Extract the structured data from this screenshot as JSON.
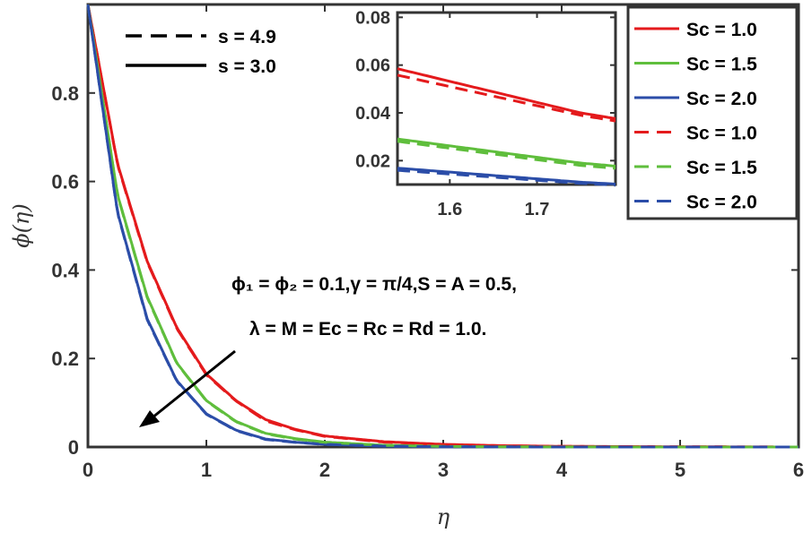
{
  "chart_data": {
    "type": "line",
    "title": "",
    "xlabel": "η",
    "ylabel": "ϕ(η)",
    "xlim": [
      0,
      6
    ],
    "ylim": [
      0,
      1.0
    ],
    "xticks": [
      "0",
      "1",
      "2",
      "3",
      "4",
      "5",
      "6"
    ],
    "yticks": [
      "0",
      "0.2",
      "0.4",
      "0.6",
      "0.8"
    ],
    "x": [
      0,
      0.25,
      0.5,
      0.75,
      1.0,
      1.25,
      1.5,
      1.75,
      2.0,
      2.5,
      3.0,
      3.5,
      4.0,
      5.0,
      6.0
    ],
    "series": [
      {
        "name": "Sc = 1.0",
        "s": "s = 3.0",
        "dash": "solid",
        "color": "#e41a1c",
        "values": [
          1.0,
          0.64,
          0.42,
          0.27,
          0.165,
          0.105,
          0.062,
          0.04,
          0.025,
          0.012,
          0.006,
          0.003,
          0.0015,
          0.0005,
          0.0
        ]
      },
      {
        "name": "Sc = 1.5",
        "s": "s = 3.0",
        "dash": "solid",
        "color": "#5fbe3c",
        "values": [
          1.0,
          0.57,
          0.34,
          0.19,
          0.105,
          0.058,
          0.031,
          0.019,
          0.011,
          0.004,
          0.0015,
          0.0005,
          0.0002,
          0.0,
          0.0
        ]
      },
      {
        "name": "Sc = 2.0",
        "s": "s = 3.0",
        "dash": "solid",
        "color": "#2b4da8",
        "values": [
          1.0,
          0.53,
          0.29,
          0.15,
          0.075,
          0.038,
          0.018,
          0.011,
          0.006,
          0.002,
          0.0005,
          0.0002,
          0.0,
          0.0,
          0.0
        ]
      },
      {
        "name": "Sc = 1.0",
        "s": "s = 4.9",
        "dash": "dashed",
        "color": "#e41a1c",
        "values": [
          1.0,
          0.638,
          0.418,
          0.268,
          0.163,
          0.104,
          0.059,
          0.039,
          0.024,
          0.011,
          0.0055,
          0.0028,
          0.0014,
          0.0005,
          0.0
        ]
      },
      {
        "name": "Sc = 1.5",
        "s": "s = 4.9",
        "dash": "dashed",
        "color": "#5fbe3c",
        "values": [
          1.0,
          0.568,
          0.338,
          0.189,
          0.104,
          0.057,
          0.03,
          0.018,
          0.0105,
          0.0038,
          0.0014,
          0.0005,
          0.0002,
          0.0,
          0.0
        ]
      },
      {
        "name": "Sc = 2.0",
        "s": "s = 4.9",
        "dash": "dashed",
        "color": "#2b4da8",
        "values": [
          1.0,
          0.528,
          0.288,
          0.149,
          0.074,
          0.037,
          0.017,
          0.0105,
          0.0058,
          0.0018,
          0.0005,
          0.0002,
          0.0,
          0.0,
          0.0
        ]
      }
    ],
    "inset": {
      "xlim": [
        1.54,
        1.79
      ],
      "ylim": [
        0.01,
        0.082
      ],
      "xticks": [
        "1.6",
        "1.7"
      ],
      "yticks": [
        "0.02",
        "0.04",
        "0.06",
        "0.08"
      ]
    },
    "line_legend": {
      "dashed": "s = 4.9",
      "solid": "s = 3.0"
    },
    "series_legend": [
      "Sc = 1.0",
      "Sc = 1.5",
      "Sc = 2.0",
      "Sc = 1.0",
      "Sc = 1.5",
      "Sc = 2.0"
    ],
    "annotation": {
      "line1": "ϕ₁ = ϕ₂ = 0.1,γ = π/4,S = A = 0.5,",
      "line2": "λ = M = Ec = Rc = Rd = 1.0."
    },
    "arrow": "decreasing with increasing Sc"
  }
}
